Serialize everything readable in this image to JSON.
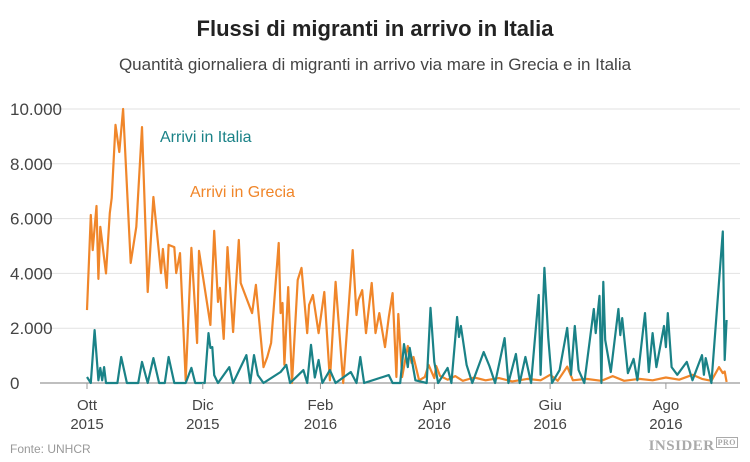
{
  "chart_data": {
    "type": "line",
    "title": "Flussi di migranti in arrivo in Italia",
    "subtitle": "Quantità giornaliera di migranti in arrivo via mare in Grecia e in Italia",
    "ylim": [
      0,
      10000
    ],
    "yticks": [
      {
        "v": 0,
        "label": "0"
      },
      {
        "v": 2000,
        "label": "2.000"
      },
      {
        "v": 4000,
        "label": "4.000"
      },
      {
        "v": 6000,
        "label": "6.000"
      },
      {
        "v": 8000,
        "label": "8.000"
      },
      {
        "v": 10000,
        "label": "10.000"
      }
    ],
    "xticks": [
      {
        "date": "2015-10-01",
        "m": "Ott",
        "y": "2015"
      },
      {
        "date": "2015-12-01",
        "m": "Dic",
        "y": "2015"
      },
      {
        "date": "2016-02-01",
        "m": "Feb",
        "y": "2016"
      },
      {
        "date": "2016-04-01",
        "m": "Apr",
        "y": "2016"
      },
      {
        "date": "2016-06-01",
        "m": "Giu",
        "y": "2016"
      },
      {
        "date": "2016-08-01",
        "m": "Ago",
        "y": "2016"
      }
    ],
    "grid": true,
    "series": [
      {
        "name": "Arrivi in Grecia",
        "color": "#f0862a",
        "points": [
          [
            "2015-10-01",
            2660
          ],
          [
            "2015-10-03",
            6130
          ],
          [
            "2015-10-04",
            4850
          ],
          [
            "2015-10-06",
            6460
          ],
          [
            "2015-10-07",
            3800
          ],
          [
            "2015-10-08",
            5700
          ],
          [
            "2015-10-11",
            4000
          ],
          [
            "2015-10-13",
            6200
          ],
          [
            "2015-10-14",
            6750
          ],
          [
            "2015-10-16",
            9420
          ],
          [
            "2015-10-18",
            8430
          ],
          [
            "2015-10-20",
            10000
          ],
          [
            "2015-10-24",
            4380
          ],
          [
            "2015-10-27",
            5700
          ],
          [
            "2015-10-30",
            9340
          ],
          [
            "2015-11-02",
            3320
          ],
          [
            "2015-11-05",
            6790
          ],
          [
            "2015-11-09",
            4010
          ],
          [
            "2015-11-10",
            4890
          ],
          [
            "2015-11-12",
            3470
          ],
          [
            "2015-11-13",
            5040
          ],
          [
            "2015-11-16",
            4960
          ],
          [
            "2015-11-17",
            4010
          ],
          [
            "2015-11-19",
            4740
          ],
          [
            "2015-11-22",
            100
          ],
          [
            "2015-11-25",
            4930
          ],
          [
            "2015-11-28",
            1460
          ],
          [
            "2015-11-29",
            4820
          ],
          [
            "2015-12-05",
            2120
          ],
          [
            "2015-12-07",
            5550
          ],
          [
            "2015-12-09",
            2960
          ],
          [
            "2015-12-10",
            3470
          ],
          [
            "2015-12-12",
            1610
          ],
          [
            "2015-12-14",
            4960
          ],
          [
            "2015-12-17",
            1860
          ],
          [
            "2015-12-20",
            5220
          ],
          [
            "2015-12-21",
            3650
          ],
          [
            "2015-12-27",
            2550
          ],
          [
            "2015-12-29",
            3580
          ],
          [
            "2016-01-02",
            580
          ],
          [
            "2016-01-04",
            950
          ],
          [
            "2016-01-06",
            1460
          ],
          [
            "2016-01-10",
            5110
          ],
          [
            "2016-01-11",
            2550
          ],
          [
            "2016-01-12",
            2920
          ],
          [
            "2016-01-13",
            660
          ],
          [
            "2016-01-15",
            3500
          ],
          [
            "2016-01-17",
            0
          ],
          [
            "2016-01-20",
            3760
          ],
          [
            "2016-01-22",
            4200
          ],
          [
            "2016-01-25",
            1820
          ],
          [
            "2016-01-26",
            2850
          ],
          [
            "2016-01-28",
            3210
          ],
          [
            "2016-01-31",
            1820
          ],
          [
            "2016-02-03",
            3320
          ],
          [
            "2016-02-06",
            100
          ],
          [
            "2016-02-09",
            3690
          ],
          [
            "2016-02-13",
            0
          ],
          [
            "2016-02-18",
            4850
          ],
          [
            "2016-02-20",
            2480
          ],
          [
            "2016-02-21",
            3030
          ],
          [
            "2016-02-23",
            3390
          ],
          [
            "2016-02-25",
            1820
          ],
          [
            "2016-02-28",
            3650
          ],
          [
            "2016-03-01",
            1820
          ],
          [
            "2016-03-03",
            2550
          ],
          [
            "2016-03-06",
            1310
          ],
          [
            "2016-03-08",
            2410
          ],
          [
            "2016-03-10",
            3280
          ],
          [
            "2016-03-12",
            220
          ],
          [
            "2016-03-13",
            2520
          ],
          [
            "2016-03-15",
            220
          ],
          [
            "2016-03-18",
            1350
          ],
          [
            "2016-03-20",
            730
          ],
          [
            "2016-03-21",
            950
          ],
          [
            "2016-03-24",
            100
          ],
          [
            "2016-03-27",
            220
          ],
          [
            "2016-03-29",
            660
          ],
          [
            "2016-04-01",
            180
          ],
          [
            "2016-04-02",
            620
          ],
          [
            "2016-04-04",
            260
          ],
          [
            "2016-04-08",
            120
          ],
          [
            "2016-04-12",
            250
          ],
          [
            "2016-04-16",
            80
          ],
          [
            "2016-04-22",
            200
          ],
          [
            "2016-04-28",
            100
          ],
          [
            "2016-05-05",
            180
          ],
          [
            "2016-05-12",
            60
          ],
          [
            "2016-05-20",
            150
          ],
          [
            "2016-05-27",
            100
          ],
          [
            "2016-06-01",
            300
          ],
          [
            "2016-06-05",
            80
          ],
          [
            "2016-06-10",
            600
          ],
          [
            "2016-06-13",
            100
          ],
          [
            "2016-06-20",
            150
          ],
          [
            "2016-06-28",
            80
          ],
          [
            "2016-07-04",
            250
          ],
          [
            "2016-07-10",
            80
          ],
          [
            "2016-07-18",
            150
          ],
          [
            "2016-07-25",
            100
          ],
          [
            "2016-08-01",
            200
          ],
          [
            "2016-08-08",
            120
          ],
          [
            "2016-08-15",
            300
          ],
          [
            "2016-08-20",
            150
          ],
          [
            "2016-08-25",
            80
          ],
          [
            "2016-08-29",
            580
          ],
          [
            "2016-08-31",
            360
          ],
          [
            "2016-09-01",
            420
          ],
          [
            "2016-09-02",
            40
          ]
        ]
      },
      {
        "name": "Arrivi in Italia",
        "color": "#1a8287",
        "points": [
          [
            "2015-10-01",
            220
          ],
          [
            "2015-10-03",
            0
          ],
          [
            "2015-10-05",
            1930
          ],
          [
            "2015-10-07",
            100
          ],
          [
            "2015-10-08",
            550
          ],
          [
            "2015-10-09",
            100
          ],
          [
            "2015-10-10",
            580
          ],
          [
            "2015-10-11",
            0
          ],
          [
            "2015-10-17",
            0
          ],
          [
            "2015-10-19",
            950
          ],
          [
            "2015-10-22",
            0
          ],
          [
            "2015-10-28",
            0
          ],
          [
            "2015-10-30",
            770
          ],
          [
            "2015-11-02",
            0
          ],
          [
            "2015-11-05",
            910
          ],
          [
            "2015-11-08",
            0
          ],
          [
            "2015-11-11",
            0
          ],
          [
            "2015-11-13",
            950
          ],
          [
            "2015-11-16",
            0
          ],
          [
            "2015-11-22",
            0
          ],
          [
            "2015-11-25",
            550
          ],
          [
            "2015-11-27",
            0
          ],
          [
            "2015-12-02",
            0
          ],
          [
            "2015-12-04",
            1820
          ],
          [
            "2015-12-05",
            1280
          ],
          [
            "2015-12-06",
            1310
          ],
          [
            "2015-12-07",
            290
          ],
          [
            "2015-12-09",
            0
          ],
          [
            "2015-12-15",
            580
          ],
          [
            "2015-12-17",
            0
          ],
          [
            "2015-12-24",
            1020
          ],
          [
            "2015-12-26",
            0
          ],
          [
            "2015-12-28",
            1020
          ],
          [
            "2015-12-30",
            290
          ],
          [
            "2016-01-02",
            0
          ],
          [
            "2016-01-11",
            400
          ],
          [
            "2016-01-14",
            660
          ],
          [
            "2016-01-16",
            0
          ],
          [
            "2016-01-23",
            470
          ],
          [
            "2016-01-25",
            0
          ],
          [
            "2016-01-27",
            1390
          ],
          [
            "2016-01-29",
            200
          ],
          [
            "2016-01-31",
            840
          ],
          [
            "2016-02-02",
            0
          ],
          [
            "2016-02-06",
            470
          ],
          [
            "2016-02-09",
            0
          ],
          [
            "2016-02-17",
            400
          ],
          [
            "2016-02-20",
            0
          ],
          [
            "2016-02-22",
            950
          ],
          [
            "2016-02-24",
            0
          ],
          [
            "2016-03-08",
            290
          ],
          [
            "2016-03-10",
            0
          ],
          [
            "2016-03-14",
            0
          ],
          [
            "2016-03-16",
            1420
          ],
          [
            "2016-03-18",
            580
          ],
          [
            "2016-03-19",
            1280
          ],
          [
            "2016-03-22",
            100
          ],
          [
            "2016-03-28",
            0
          ],
          [
            "2016-03-30",
            2740
          ],
          [
            "2016-04-01",
            770
          ],
          [
            "2016-04-03",
            0
          ],
          [
            "2016-04-08",
            550
          ],
          [
            "2016-04-10",
            0
          ],
          [
            "2016-04-13",
            2410
          ],
          [
            "2016-04-14",
            1680
          ],
          [
            "2016-04-15",
            2080
          ],
          [
            "2016-04-18",
            660
          ],
          [
            "2016-04-21",
            0
          ],
          [
            "2016-04-27",
            1130
          ],
          [
            "2016-04-30",
            620
          ],
          [
            "2016-05-03",
            0
          ],
          [
            "2016-05-08",
            1640
          ],
          [
            "2016-05-10",
            0
          ],
          [
            "2016-05-14",
            1060
          ],
          [
            "2016-05-16",
            0
          ],
          [
            "2016-05-19",
            950
          ],
          [
            "2016-05-22",
            0
          ],
          [
            "2016-05-26",
            3210
          ],
          [
            "2016-05-27",
            300
          ],
          [
            "2016-05-29",
            4200
          ],
          [
            "2016-05-31",
            1680
          ],
          [
            "2016-06-02",
            0
          ],
          [
            "2016-06-06",
            470
          ],
          [
            "2016-06-10",
            2010
          ],
          [
            "2016-06-12",
            300
          ],
          [
            "2016-06-14",
            2080
          ],
          [
            "2016-06-16",
            470
          ],
          [
            "2016-06-19",
            0
          ],
          [
            "2016-06-24",
            2700
          ],
          [
            "2016-06-25",
            1820
          ],
          [
            "2016-06-27",
            3180
          ],
          [
            "2016-06-28",
            0
          ],
          [
            "2016-06-29",
            3690
          ],
          [
            "2016-06-30",
            1570
          ],
          [
            "2016-07-03",
            400
          ],
          [
            "2016-07-07",
            2700
          ],
          [
            "2016-07-08",
            1750
          ],
          [
            "2016-07-09",
            2370
          ],
          [
            "2016-07-12",
            360
          ],
          [
            "2016-07-15",
            880
          ],
          [
            "2016-07-17",
            100
          ],
          [
            "2016-07-21",
            2550
          ],
          [
            "2016-07-23",
            400
          ],
          [
            "2016-07-25",
            1820
          ],
          [
            "2016-07-27",
            580
          ],
          [
            "2016-07-31",
            2080
          ],
          [
            "2016-08-01",
            1310
          ],
          [
            "2016-08-02",
            2550
          ],
          [
            "2016-08-04",
            580
          ],
          [
            "2016-08-07",
            300
          ],
          [
            "2016-08-12",
            770
          ],
          [
            "2016-08-15",
            100
          ],
          [
            "2016-08-17",
            470
          ],
          [
            "2016-08-20",
            1020
          ],
          [
            "2016-08-21",
            300
          ],
          [
            "2016-08-22",
            910
          ],
          [
            "2016-08-25",
            0
          ],
          [
            "2016-08-31",
            5530
          ],
          [
            "2016-09-01",
            840
          ],
          [
            "2016-09-02",
            2300
          ]
        ]
      }
    ],
    "annotations": [
      {
        "text": "Arrivi in Italia",
        "color": "#1a8287"
      },
      {
        "text": "Arrivi in Grecia",
        "color": "#f0862a"
      }
    ]
  },
  "footer": {
    "source": "Fonte: UNHCR",
    "logo": "INSIDER",
    "logo_sup": "PRO"
  }
}
